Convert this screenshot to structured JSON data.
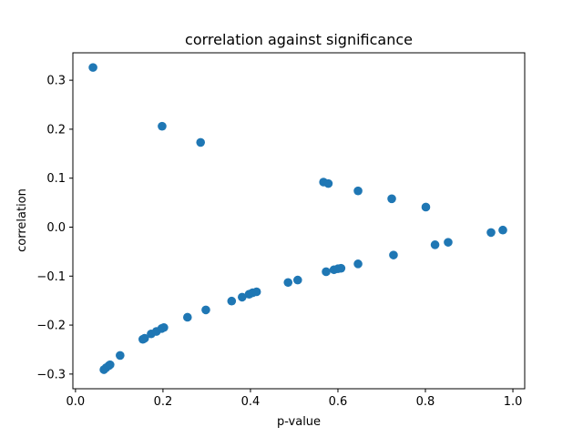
{
  "chart_data": {
    "type": "scatter",
    "title": "correlation against significance",
    "xlabel": "p-value",
    "ylabel": "correlation",
    "xlim": [
      -0.006,
      1.027
    ],
    "ylim": [
      -0.33,
      0.356
    ],
    "x_ticks": [
      0.0,
      0.2,
      0.4,
      0.6,
      0.8,
      1.0
    ],
    "x_tick_labels": [
      "0.0",
      "0.2",
      "0.4",
      "0.6",
      "0.8",
      "1.0"
    ],
    "y_ticks": [
      -0.3,
      -0.2,
      -0.1,
      0.0,
      0.1,
      0.2,
      0.3
    ],
    "y_tick_labels": [
      "−0.3",
      "−0.2",
      "−0.1",
      "0.0",
      "0.1",
      "0.2",
      "0.3"
    ],
    "grid": false,
    "marker_color": "#1f77b4",
    "points": [
      {
        "x": 0.04,
        "y": 0.326
      },
      {
        "x": 0.198,
        "y": 0.206
      },
      {
        "x": 0.286,
        "y": 0.173
      },
      {
        "x": 0.567,
        "y": 0.092
      },
      {
        "x": 0.578,
        "y": 0.089
      },
      {
        "x": 0.646,
        "y": 0.074
      },
      {
        "x": 0.723,
        "y": 0.058
      },
      {
        "x": 0.801,
        "y": 0.041
      },
      {
        "x": 0.065,
        "y": -0.291
      },
      {
        "x": 0.07,
        "y": -0.287
      },
      {
        "x": 0.076,
        "y": -0.283
      },
      {
        "x": 0.079,
        "y": -0.281
      },
      {
        "x": 0.102,
        "y": -0.262
      },
      {
        "x": 0.154,
        "y": -0.229
      },
      {
        "x": 0.158,
        "y": -0.227
      },
      {
        "x": 0.173,
        "y": -0.218
      },
      {
        "x": 0.185,
        "y": -0.213
      },
      {
        "x": 0.197,
        "y": -0.207
      },
      {
        "x": 0.202,
        "y": -0.205
      },
      {
        "x": 0.256,
        "y": -0.184
      },
      {
        "x": 0.298,
        "y": -0.169
      },
      {
        "x": 0.357,
        "y": -0.151
      },
      {
        "x": 0.381,
        "y": -0.143
      },
      {
        "x": 0.397,
        "y": -0.137
      },
      {
        "x": 0.405,
        "y": -0.134
      },
      {
        "x": 0.414,
        "y": -0.132
      },
      {
        "x": 0.486,
        "y": -0.113
      },
      {
        "x": 0.508,
        "y": -0.108
      },
      {
        "x": 0.573,
        "y": -0.091
      },
      {
        "x": 0.591,
        "y": -0.087
      },
      {
        "x": 0.6,
        "y": -0.085
      },
      {
        "x": 0.607,
        "y": -0.084
      },
      {
        "x": 0.646,
        "y": -0.075
      },
      {
        "x": 0.727,
        "y": -0.057
      },
      {
        "x": 0.822,
        "y": -0.036
      },
      {
        "x": 0.852,
        "y": -0.031
      },
      {
        "x": 0.95,
        "y": -0.011
      },
      {
        "x": 0.977,
        "y": -0.006
      }
    ]
  }
}
